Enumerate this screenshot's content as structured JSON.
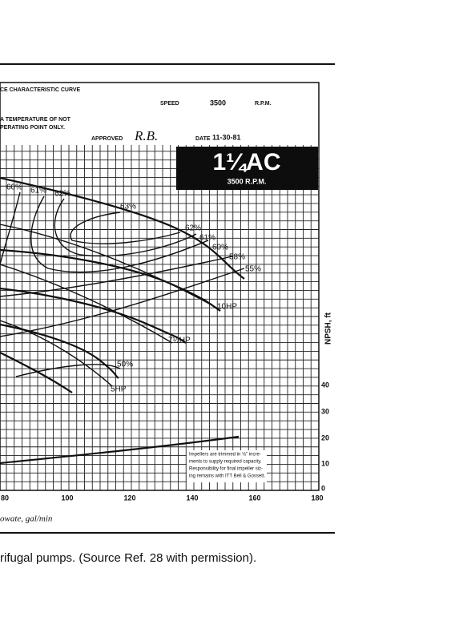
{
  "header": {
    "title": "CE CHARACTERISTIC CURVE",
    "speed_label": "SPEED",
    "speed": "3500",
    "speed_unit": "R.P.M.",
    "note_lines": [
      "A TEMPERATURE OF NOT",
      "PERATING POINT ONLY."
    ],
    "approved_label": "APPROVED",
    "approved_by": "R.B.",
    "date_label": "DATE",
    "date": "11-30-81"
  },
  "model": {
    "name": "1¼AC",
    "speed": "3500 R.P.M."
  },
  "efficiency_labels": [
    "60%",
    "61%",
    "62%",
    "63%",
    "62%",
    "61%",
    "60%",
    "58%",
    "55%",
    "50%"
  ],
  "power_labels": [
    "10HP",
    "7½HP",
    "5HP"
  ],
  "npsh_axis": {
    "label": "NPSH, ft",
    "ticks": [
      40,
      30,
      20,
      10,
      0
    ]
  },
  "x_axis": {
    "label": "owate, gal/min",
    "ticks": [
      80,
      100,
      120,
      140,
      160,
      180
    ]
  },
  "impeller_note": [
    "Impellers are trimmed in ⅛\" incre-",
    "ments to supply required capacity.",
    "Responsibility for final impeller siz-",
    "ing remains with ITT Bell & Gossett."
  ],
  "caption": "rifugal pumps.  (Source Ref. 28 with permission)."
}
